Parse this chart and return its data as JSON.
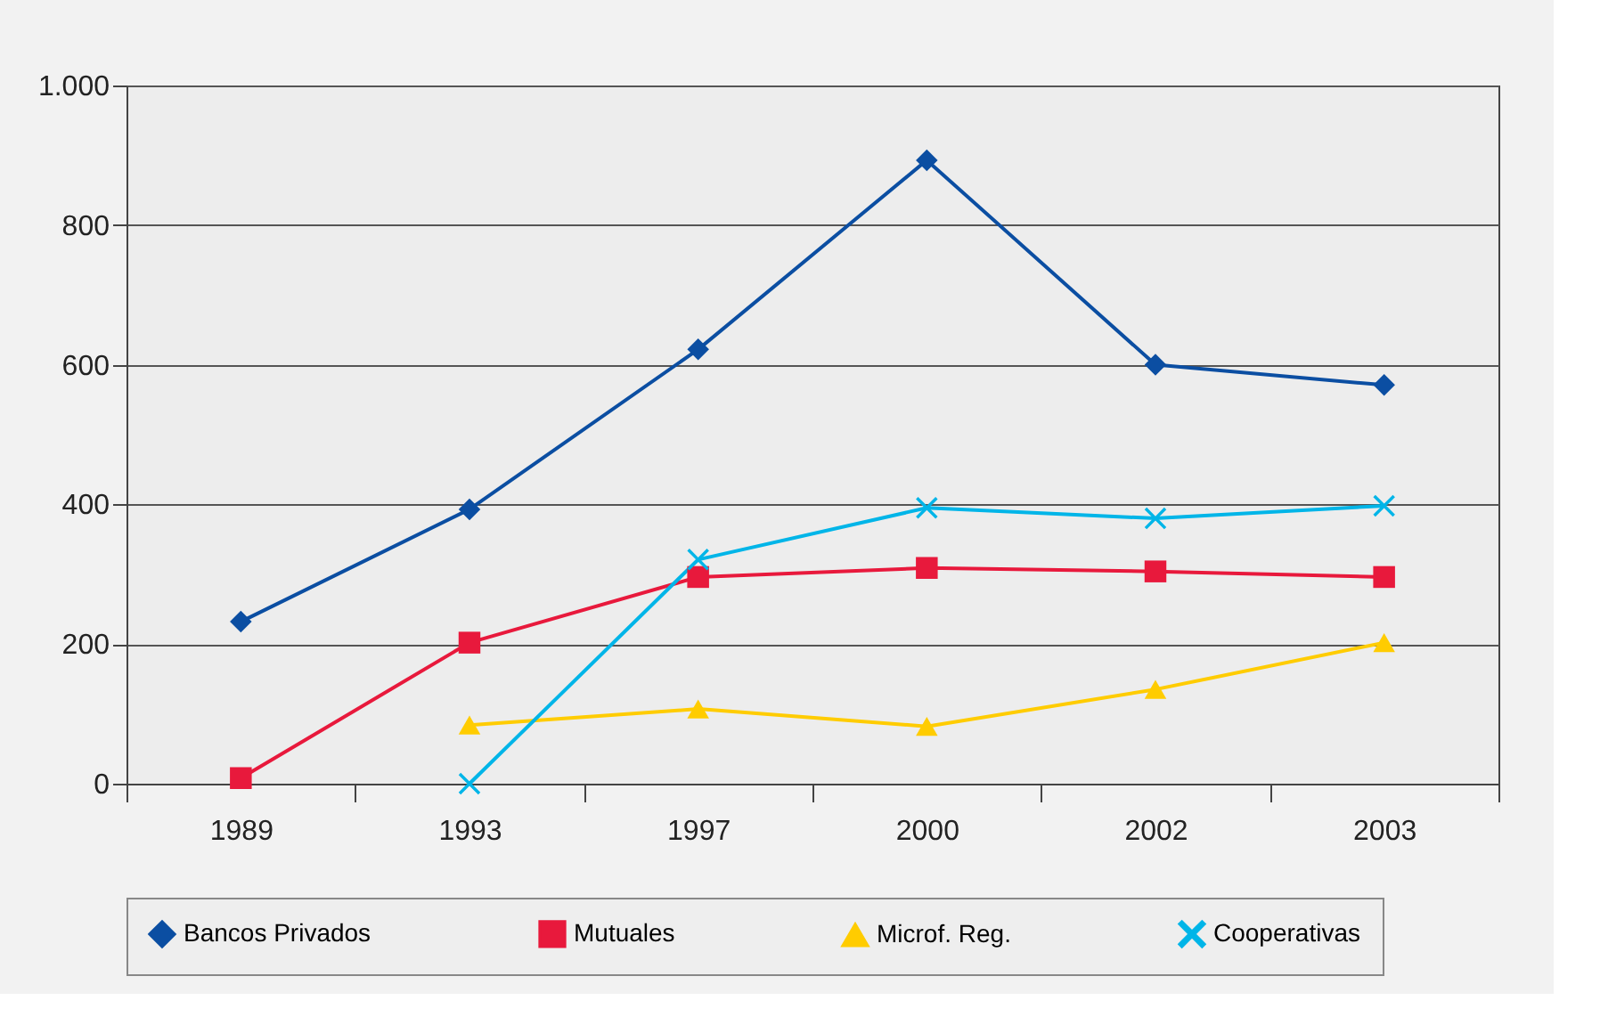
{
  "chart_data": {
    "type": "line",
    "categories": [
      "1989",
      "1993",
      "1997",
      "2000",
      "2002",
      "2003"
    ],
    "series": [
      {
        "name": "Bancos Privados",
        "color": "#0b4ea2",
        "marker": "diamond",
        "values": [
          232,
          393,
          622,
          893,
          600,
          571
        ]
      },
      {
        "name": "Mutuales",
        "color": "#e8193c",
        "marker": "square",
        "values": [
          8,
          202,
          296,
          309,
          304,
          296
        ]
      },
      {
        "name": "Microf. Reg.",
        "color": "#ffcc00",
        "marker": "triangle",
        "values": [
          null,
          84,
          107,
          82,
          135,
          202
        ]
      },
      {
        "name": "Cooperativas",
        "color": "#00b5e8",
        "marker": "cross",
        "values": [
          null,
          0,
          321,
          395,
          380,
          398
        ]
      }
    ],
    "ylim": [
      0,
      1000
    ],
    "yticks": [
      0,
      200,
      400,
      600,
      800,
      {
        "value": 1000,
        "label": "1.000"
      }
    ],
    "grid": "y",
    "legend": "bottom",
    "line_style": "solid"
  }
}
